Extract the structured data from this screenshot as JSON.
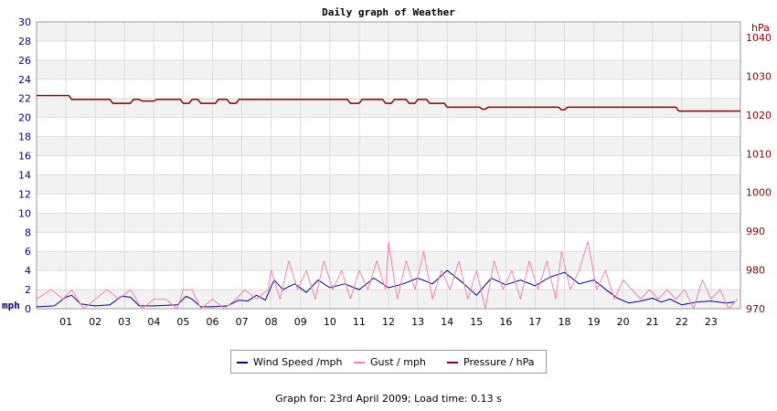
{
  "chart_data": {
    "type": "line",
    "title": "Daily graph of Weather",
    "left_axis": {
      "unit_label": "mph",
      "range": [
        0,
        30
      ],
      "ticks": [
        "0",
        "2",
        "4",
        "6",
        "8",
        "10",
        "12",
        "14",
        "16",
        "18",
        "20",
        "22",
        "24",
        "26",
        "28",
        "30"
      ],
      "color": "#00008b"
    },
    "right_axis": {
      "unit_label": "hPa",
      "range": [
        970,
        1044
      ],
      "ticks": [
        "970",
        "980",
        "990",
        "1000",
        "1010",
        "1020",
        "1030",
        "1040"
      ],
      "color": "#8b0000"
    },
    "x_axis": {
      "range": [
        0,
        24
      ],
      "ticks": [
        "01",
        "02",
        "03",
        "04",
        "05",
        "06",
        "07",
        "08",
        "09",
        "10",
        "11",
        "12",
        "13",
        "14",
        "15",
        "16",
        "17",
        "18",
        "19",
        "20",
        "21",
        "22",
        "23"
      ]
    },
    "grid": true,
    "legend_position": "bottom-center",
    "series": [
      {
        "name": "Wind Speed /mph",
        "color": "#00008b",
        "axis": "left",
        "x": [
          0,
          0.6,
          1.0,
          1.2,
          1.5,
          2.0,
          2.5,
          2.9,
          3.2,
          3.5,
          4.0,
          4.8,
          5.1,
          5.3,
          5.6,
          6.0,
          6.5,
          6.9,
          7.2,
          7.5,
          7.8,
          8.1,
          8.4,
          8.8,
          9.2,
          9.6,
          10.0,
          10.5,
          11.0,
          11.5,
          12.0,
          12.5,
          13.0,
          13.5,
          14.0,
          14.5,
          15.0,
          15.5,
          16.0,
          16.5,
          17.0,
          17.5,
          18.0,
          18.5,
          19.0,
          19.5,
          19.8,
          20.2,
          20.6,
          21.0,
          21.3,
          21.6,
          22.0,
          22.5,
          23.0,
          23.5,
          23.8
        ],
        "values": [
          0.2,
          0.3,
          1.2,
          1.4,
          0.5,
          0.3,
          0.4,
          1.3,
          1.2,
          0.3,
          0.3,
          0.4,
          1.3,
          1.0,
          0.2,
          0.2,
          0.3,
          0.9,
          0.8,
          1.4,
          0.9,
          3.0,
          2.0,
          2.6,
          1.7,
          3.0,
          2.2,
          2.6,
          2.0,
          3.2,
          2.2,
          2.6,
          3.2,
          2.6,
          4.0,
          2.8,
          1.4,
          3.2,
          2.5,
          3.0,
          2.4,
          3.3,
          3.8,
          2.6,
          3.0,
          1.8,
          1.1,
          0.6,
          0.8,
          1.1,
          0.7,
          1.0,
          0.4,
          0.7,
          0.8,
          0.6,
          0.7
        ]
      },
      {
        "name": "Gust / mph",
        "color": "#ff7fa8",
        "axis": "left",
        "x": [
          0,
          0.5,
          0.9,
          1.2,
          1.6,
          2.0,
          2.4,
          2.8,
          3.2,
          3.6,
          4.0,
          4.4,
          4.8,
          5.0,
          5.3,
          5.6,
          6.0,
          6.4,
          6.8,
          7.1,
          7.5,
          7.9,
          8.0,
          8.3,
          8.6,
          8.9,
          9.2,
          9.5,
          9.8,
          10.1,
          10.4,
          10.7,
          11.0,
          11.3,
          11.6,
          11.9,
          12.0,
          12.3,
          12.6,
          12.9,
          13.2,
          13.5,
          13.8,
          14.1,
          14.4,
          14.7,
          15.0,
          15.3,
          15.6,
          15.9,
          16.2,
          16.5,
          16.8,
          17.1,
          17.4,
          17.7,
          17.9,
          18.2,
          18.5,
          18.8,
          19.1,
          19.4,
          19.7,
          20.0,
          20.3,
          20.6,
          20.9,
          21.2,
          21.5,
          21.8,
          22.1,
          22.4,
          22.7,
          23.0,
          23.3,
          23.6,
          23.9
        ],
        "values": [
          1.0,
          2.0,
          1.0,
          2.0,
          0.0,
          1.0,
          2.0,
          1.0,
          2.0,
          0.0,
          1.0,
          1.0,
          0.0,
          2.0,
          2.0,
          0.0,
          1.0,
          0.0,
          1.0,
          2.0,
          1.0,
          2.0,
          4.0,
          1.0,
          5.0,
          2.0,
          4.0,
          1.0,
          5.0,
          2.0,
          4.0,
          1.0,
          4.0,
          2.0,
          5.0,
          2.0,
          7.0,
          1.0,
          5.0,
          2.0,
          6.0,
          1.0,
          4.0,
          2.0,
          5.0,
          1.0,
          4.0,
          0.0,
          5.0,
          2.0,
          4.0,
          1.0,
          5.0,
          2.0,
          5.0,
          1.0,
          6.0,
          2.0,
          4.0,
          7.0,
          2.0,
          4.0,
          1.0,
          3.0,
          2.0,
          1.0,
          2.0,
          1.0,
          2.0,
          1.0,
          2.0,
          0.0,
          3.0,
          1.0,
          2.0,
          0.0,
          1.0
        ]
      },
      {
        "name": "Pressure / hPa",
        "color": "#8b0000",
        "axis": "right",
        "step": true,
        "x": [
          0,
          1.1,
          1.2,
          2.5,
          2.6,
          3.2,
          3.3,
          3.5,
          3.6,
          4.0,
          4.1,
          4.9,
          5.0,
          5.2,
          5.3,
          5.5,
          5.6,
          6.1,
          6.2,
          6.5,
          6.6,
          6.8,
          6.9,
          10.6,
          10.7,
          11.0,
          11.1,
          11.8,
          11.9,
          12.1,
          12.2,
          12.6,
          12.7,
          12.9,
          13.0,
          13.3,
          13.4,
          13.9,
          14.0,
          15.1,
          15.2,
          15.3,
          15.4,
          17.8,
          17.9,
          18.0,
          18.1,
          21.8,
          21.9,
          24.0
        ],
        "values": [
          1025,
          1025,
          1024,
          1024,
          1023,
          1023,
          1024,
          1024,
          1023.6,
          1023.6,
          1024,
          1024,
          1023,
          1023,
          1024,
          1024,
          1023,
          1023,
          1024,
          1024,
          1023,
          1023,
          1024,
          1024,
          1023,
          1023,
          1024,
          1024,
          1023,
          1023,
          1024,
          1024,
          1023,
          1023,
          1024,
          1024,
          1023,
          1023,
          1022,
          1022,
          1021.5,
          1021.5,
          1022,
          1022,
          1021.3,
          1021.3,
          1022,
          1022,
          1021,
          1021
        ]
      }
    ]
  },
  "legend": {
    "wind_label": "Wind Speed /mph",
    "gust_label": "Gust / mph",
    "pressure_label": "Pressure / hPa"
  },
  "footer": {
    "text": "Graph for: 23rd April 2009; Load time: 0.13 s"
  }
}
